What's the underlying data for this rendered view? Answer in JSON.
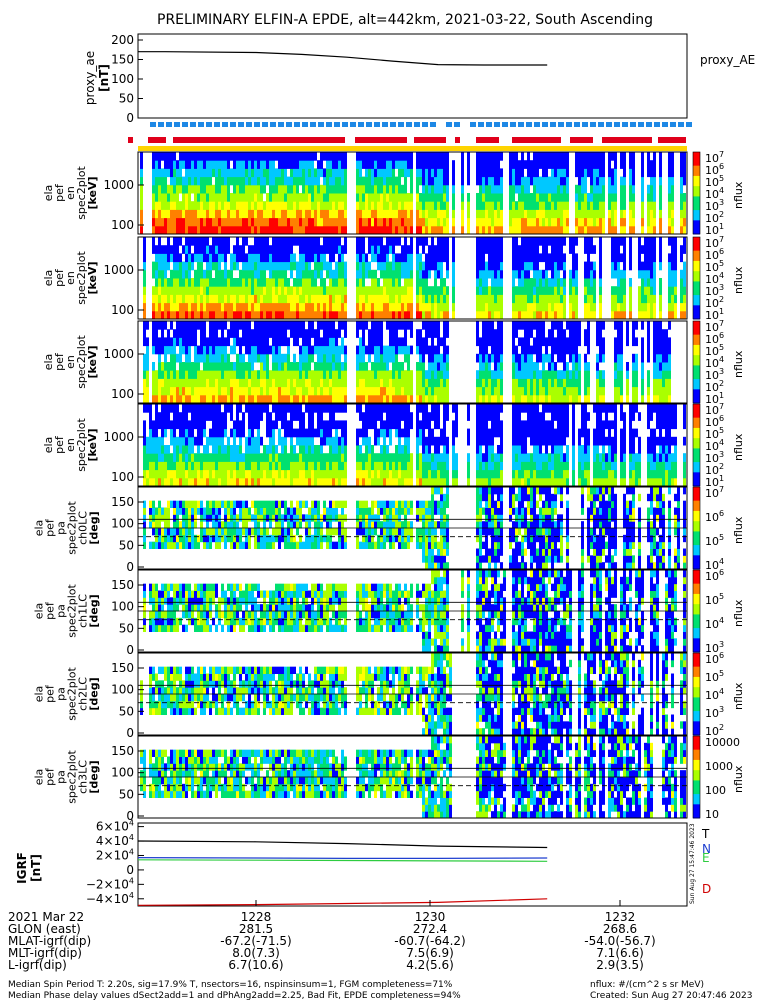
{
  "title": "PRELIMINARY ELFIN-A EPDE, alt=442km, 2021-03-22, South Ascending",
  "colors": {
    "frame": "#000000",
    "bar_yellow": "#ffd400",
    "bar_red": "#e0001b",
    "bar_blue": "#1e88e5",
    "igrf_T": "#000000",
    "igrf_N": "#1f3fd0",
    "igrf_E": "#2ecc40",
    "igrf_D": "#d00000"
  },
  "proxy_ae": {
    "ylabel_lines": [
      "proxy_ae",
      "[nT]"
    ],
    "legend": "proxy_AE",
    "yticks": [
      "200",
      "150",
      "100",
      "50",
      "0"
    ]
  },
  "energy_panels": [
    {
      "ylabel_lines": [
        "ela",
        "pef",
        "en",
        "spec2plot",
        "[keV]"
      ],
      "yticks": [
        "1000",
        "100"
      ],
      "cbar_ticks": [
        "10^7",
        "10^6",
        "10^5",
        "10^4",
        "10^3",
        "10^2",
        "10^1"
      ],
      "cbar_label": "nflux"
    },
    {
      "ylabel_lines": [
        "ela",
        "pef",
        "en",
        "spec2plot",
        "[keV]"
      ],
      "yticks": [
        "1000",
        "100"
      ],
      "cbar_ticks": [
        "10^7",
        "10^6",
        "10^5",
        "10^4",
        "10^3",
        "10^2",
        "10^1"
      ],
      "cbar_label": "nflux"
    },
    {
      "ylabel_lines": [
        "ela",
        "pef",
        "en",
        "spec2plot",
        "[keV]"
      ],
      "yticks": [
        "1000",
        "100"
      ],
      "cbar_ticks": [
        "10^7",
        "10^6",
        "10^5",
        "10^4",
        "10^3",
        "10^2",
        "10^1"
      ],
      "cbar_label": "nflux"
    },
    {
      "ylabel_lines": [
        "ela",
        "pef",
        "en",
        "spec2plot",
        "[keV]"
      ],
      "yticks": [
        "1000",
        "100"
      ],
      "cbar_ticks": [
        "10^7",
        "10^6",
        "10^5",
        "10^4",
        "10^3",
        "10^2",
        "10^1"
      ],
      "cbar_label": "nflux"
    }
  ],
  "pa_panels": [
    {
      "ylabel_lines": [
        "ela",
        "pef",
        "pa",
        "spec2plot",
        "ch0LC",
        "[deg]"
      ],
      "yticks": [
        "150",
        "100",
        "50",
        "0"
      ],
      "cbar_ticks": [
        "10^7",
        "10^6",
        "10^5",
        "10^4"
      ],
      "cbar_label": "nflux"
    },
    {
      "ylabel_lines": [
        "ela",
        "pef",
        "pa",
        "spec2plot",
        "ch1LC",
        "[deg]"
      ],
      "yticks": [
        "150",
        "100",
        "50",
        "0"
      ],
      "cbar_ticks": [
        "10^6",
        "10^5",
        "10^4",
        "10^3"
      ],
      "cbar_label": "nflux"
    },
    {
      "ylabel_lines": [
        "ela",
        "pef",
        "pa",
        "spec2plot",
        "ch2LC",
        "[deg]"
      ],
      "yticks": [
        "150",
        "100",
        "50",
        "0"
      ],
      "cbar_ticks": [
        "10^6",
        "10^5",
        "10^4",
        "10^3",
        "10^2"
      ],
      "cbar_label": "nflux"
    },
    {
      "ylabel_lines": [
        "ela",
        "pef",
        "pa",
        "spec2plot",
        "ch3LC",
        "[deg]"
      ],
      "yticks": [
        "150",
        "100",
        "50",
        "0"
      ],
      "cbar_ticks": [
        "10000",
        "1000",
        "100",
        "10"
      ],
      "cbar_label": "nflux"
    }
  ],
  "igrf": {
    "ylabel_lines": [
      "IGRF",
      "[nT]"
    ],
    "yticks": [
      "6×10^4",
      "4×10^4",
      "2×10^4",
      "0",
      "−2×10^4",
      "−4×10^4"
    ],
    "components": [
      "T",
      "N",
      "E",
      "D"
    ]
  },
  "stamp": "Sun Aug 27 15:47:46 2023",
  "footer": {
    "date_label": "2021 Mar 22",
    "time_ticks": [
      "1228",
      "1230",
      "1232"
    ],
    "rows": [
      {
        "label": "GLON (east)",
        "values": [
          "281.5",
          "272.4",
          "268.6"
        ]
      },
      {
        "label": "MLAT-igrf(dip)",
        "values": [
          "-67.2(-71.5)",
          "-60.7(-64.2)",
          "-54.0(-56.7)"
        ]
      },
      {
        "label": "MLT-igrf(dip)",
        "values": [
          "8.0(7.3)",
          "7.5(6.9)",
          "7.1(6.6)"
        ]
      },
      {
        "label": "L-igrf(dip)",
        "values": [
          "6.7(10.6)",
          "4.2(5.6)",
          "2.9(3.5)"
        ]
      }
    ],
    "note1": "Median Spin Period T: 2.20s, sig=17.9% T, nsectors=16, nspinsinsum=1, FGM completeness=71%",
    "note2": "Median Phase delay values dSect2add=1 and dPhAng2add=2.25, Bad Fit, EPDE completeness=94%",
    "units_note": "nflux: #/(cm^2 s sr MeV)",
    "created_note": "Created: Sun Aug 27 20:47:46 2023"
  },
  "chart_data": [
    {
      "type": "line",
      "name_ref": "proxy_ae",
      "x_minutes_from_1228": [
        -1.8,
        -1.0,
        0,
        0.5,
        1.0,
        1.5,
        2.0,
        2.5,
        3.2
      ],
      "y": [
        170,
        170,
        168,
        163,
        156,
        146,
        137,
        136,
        136
      ],
      "ylim": [
        0,
        200
      ]
    },
    {
      "type": "line",
      "name_ref": "igrf",
      "x_minutes_from_1228": [
        -1.8,
        0,
        1.0,
        2.0,
        3.2
      ],
      "series": [
        {
          "name": "T",
          "values": [
            40000,
            39000,
            36500,
            33000,
            31000
          ]
        },
        {
          "name": "N",
          "values": [
            17000,
            16500,
            16000,
            16000,
            16500
          ]
        },
        {
          "name": "E",
          "values": [
            14000,
            13500,
            13000,
            12500,
            12000
          ]
        },
        {
          "name": "D",
          "values": [
            -49000,
            -48000,
            -46500,
            -45000,
            -40000
          ]
        }
      ],
      "ylim": [
        -50000,
        65000
      ]
    }
  ]
}
